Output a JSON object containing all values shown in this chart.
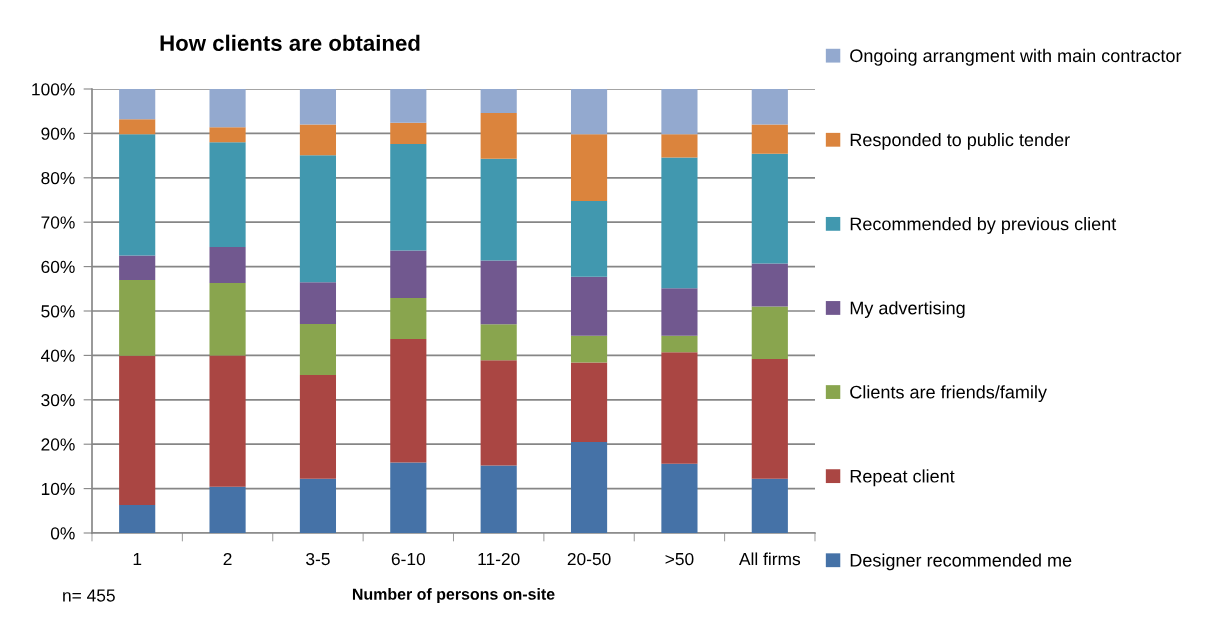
{
  "chart_data": {
    "type": "bar",
    "stacked": true,
    "title": "How clients are obtained",
    "xlabel": "Number of persons on-site",
    "annotations": [
      "n= 455"
    ],
    "categories": [
      "1",
      "2",
      "3-5",
      "6-10",
      "11-20",
      "20-50",
      ">50",
      "All firms"
    ],
    "series": [
      {
        "name": "Designer recommended me",
        "color": "#4572a7",
        "values": [
          6.3,
          10.4,
          12.2,
          15.9,
          15.2,
          20.5,
          15.6,
          12.2
        ]
      },
      {
        "name": "Repeat client",
        "color": "#aa4643",
        "values": [
          33.6,
          29.6,
          23.4,
          27.8,
          23.7,
          17.9,
          25.1,
          27.0
        ]
      },
      {
        "name": "Clients are friends/family",
        "color": "#89a54e",
        "values": [
          17.1,
          16.3,
          11.5,
          9.2,
          8.1,
          6.0,
          3.7,
          11.8
        ]
      },
      {
        "name": "My advertising",
        "color": "#71588f",
        "values": [
          5.5,
          8.1,
          9.4,
          10.7,
          14.4,
          13.3,
          10.7,
          9.7
        ]
      },
      {
        "name": "Recommended by previous client",
        "color": "#4198af",
        "values": [
          27.3,
          23.6,
          28.6,
          24.0,
          22.9,
          17.1,
          29.5,
          24.7
        ]
      },
      {
        "name": "Responded to public tender",
        "color": "#db843d",
        "values": [
          3.4,
          3.4,
          6.9,
          4.8,
          10.3,
          15.0,
          5.2,
          6.6
        ]
      },
      {
        "name": "Ongoing arrangment with main contractor",
        "color": "#93a9cf",
        "values": [
          6.8,
          8.6,
          8.0,
          7.6,
          5.4,
          10.2,
          10.2,
          8.0
        ]
      }
    ],
    "ylim": [
      0,
      100
    ],
    "yticks": [
      {
        "value": 0,
        "label": "0%"
      },
      {
        "value": 10,
        "label": "10%"
      },
      {
        "value": 20,
        "label": "20%"
      },
      {
        "value": 30,
        "label": "30%"
      },
      {
        "value": 40,
        "label": "40%"
      },
      {
        "value": 50,
        "label": "50%"
      },
      {
        "value": 60,
        "label": "60%"
      },
      {
        "value": 70,
        "label": "70%"
      },
      {
        "value": 80,
        "label": "80%"
      },
      {
        "value": 90,
        "label": "90%"
      },
      {
        "value": 100,
        "label": "100%"
      }
    ],
    "grid": "y",
    "legend": "right"
  }
}
